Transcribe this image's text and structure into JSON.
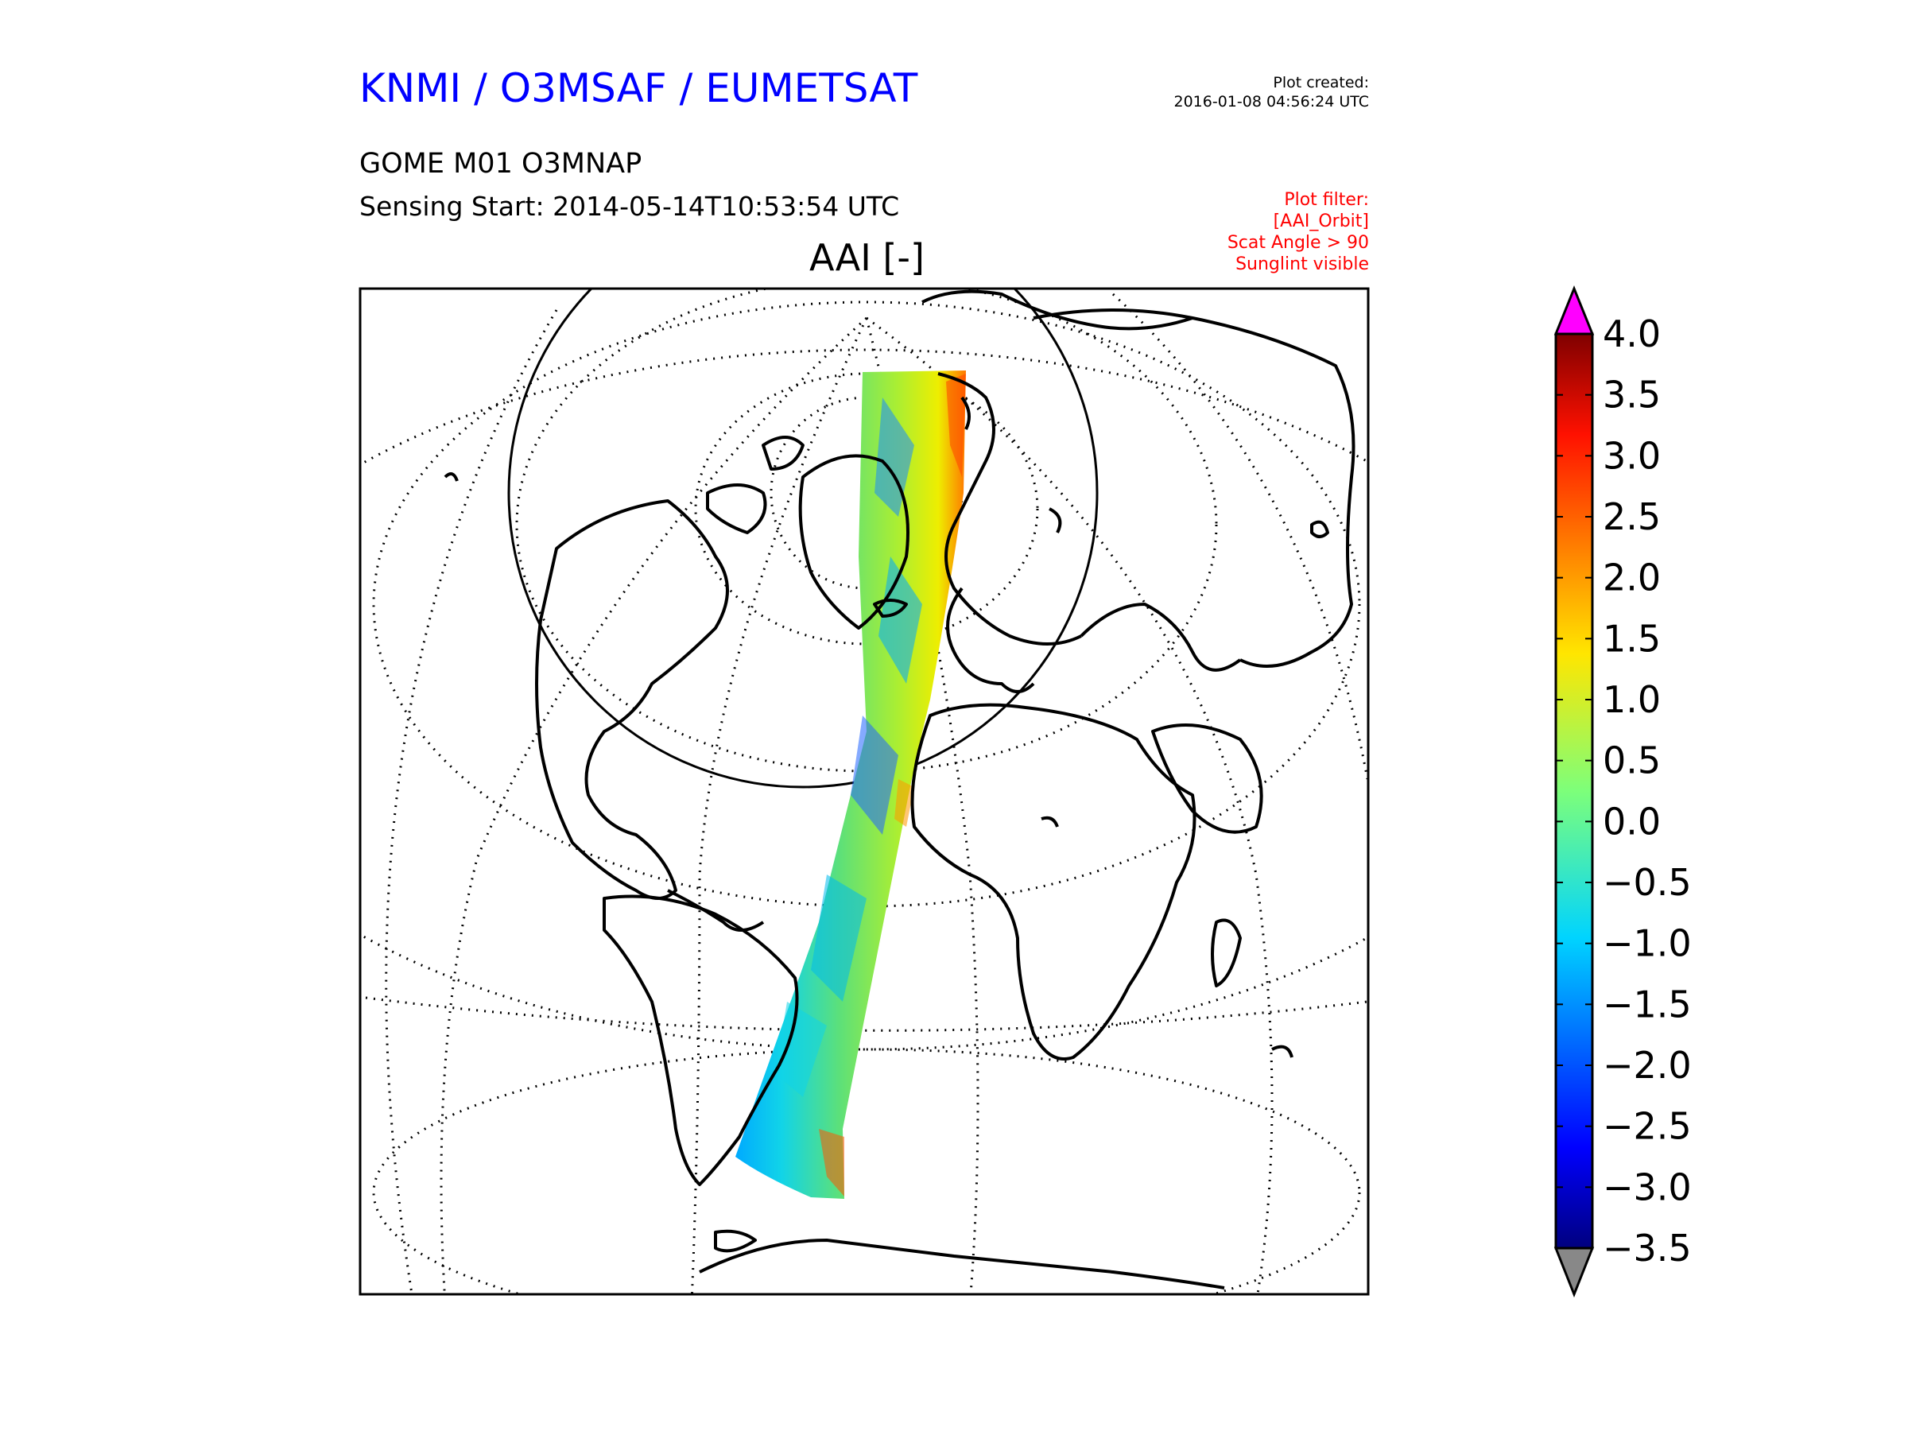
{
  "header": {
    "org": "KNMI / O3MSAF / EUMETSAT",
    "plot_created_label": "Plot created:",
    "plot_created_time": "2016-01-08 04:56:24 UTC",
    "product": "GOME M01 O3MNAP",
    "sensing_start": "Sensing Start: 2014-05-14T10:53:54 UTC",
    "filter_lines": [
      "Plot filter:",
      "[AAI_Orbit]",
      "Scat Angle > 90",
      "Sunglint visible"
    ]
  },
  "map": {
    "title": "AAI [-]",
    "projection": "orthographic",
    "graticule": "dotted",
    "swath_colors": [
      "#00aaff",
      "#3399ff",
      "#11d4e8",
      "#5ce07a",
      "#aaee33",
      "#eeee00",
      "#ffaa00",
      "#ff5500"
    ]
  },
  "colorbar": {
    "ticks": [
      "4.0",
      "3.5",
      "3.0",
      "2.5",
      "2.0",
      "1.5",
      "1.0",
      "0.5",
      "0.0",
      "−0.5",
      "−1.0",
      "−1.5",
      "−2.0",
      "−2.5",
      "−3.0",
      "−3.5"
    ],
    "min": -3.5,
    "max": 4.0,
    "over_color": "#ff00ff",
    "under_color": "#888888",
    "colormap": "jet"
  }
}
